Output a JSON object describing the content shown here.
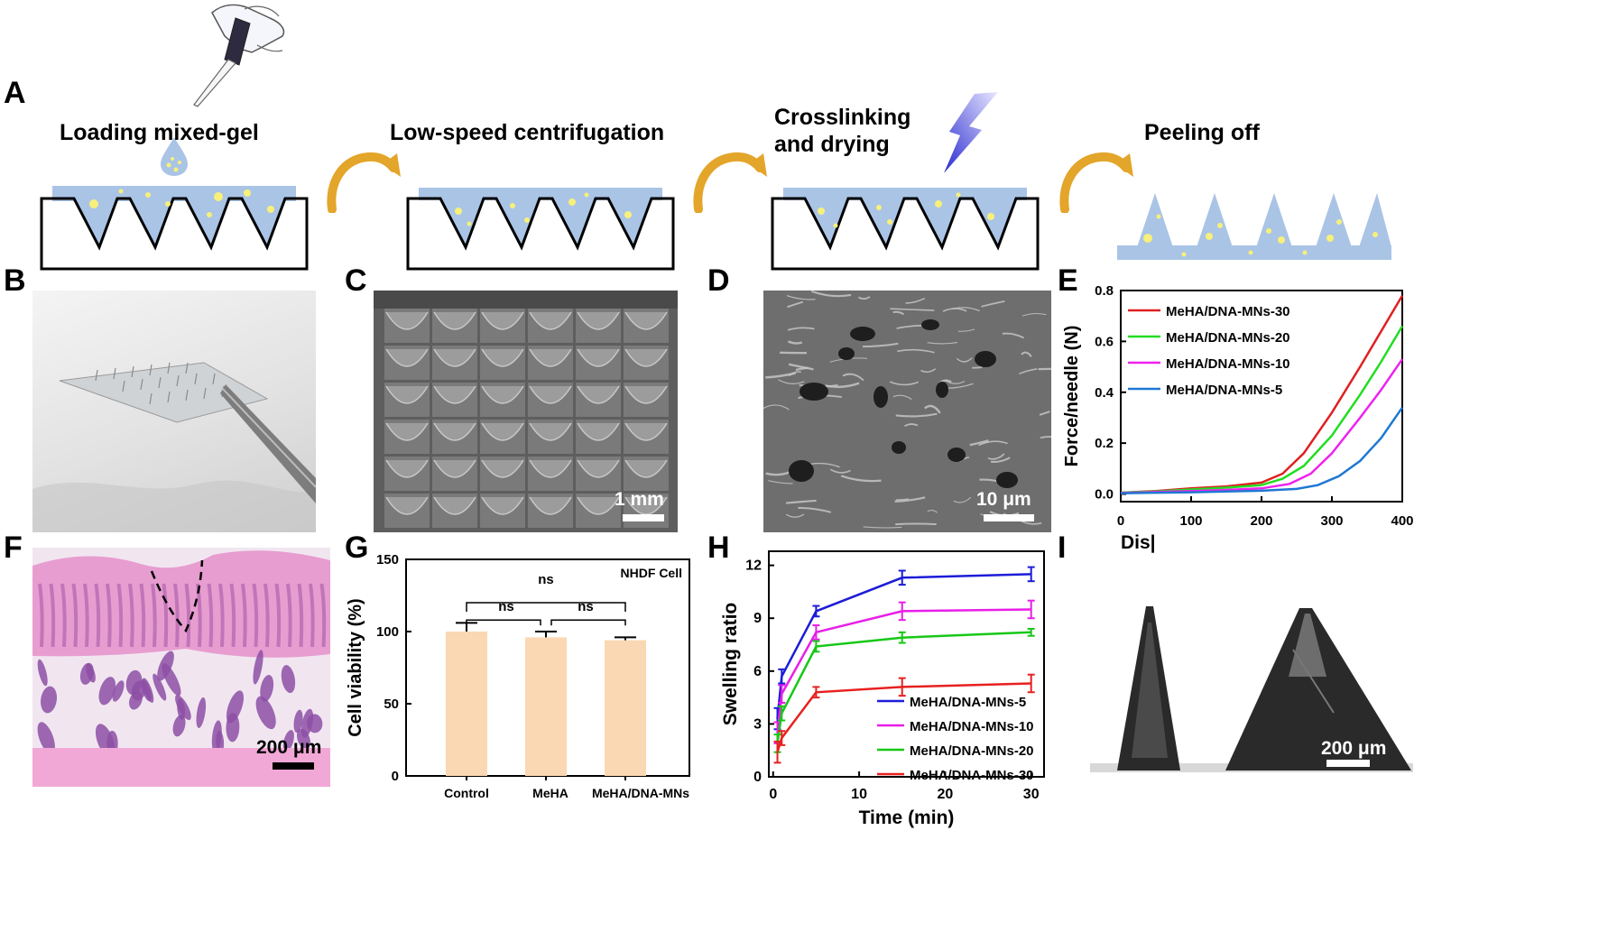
{
  "panel_labels": {
    "A": "A",
    "B": "B",
    "C": "C",
    "D": "D",
    "E": "E",
    "F": "F",
    "G": "G",
    "H": "H",
    "I": "I"
  },
  "steps": [
    "Loading mixed-gel",
    "Low-speed centrifugation",
    "Crosslinking",
    "and drying",
    "Peeling off"
  ],
  "scale_bars": {
    "C": "1 mm",
    "D": "10 μm",
    "F": "200 μm",
    "I": "200 μm"
  },
  "colors": {
    "gel": "#aac4e6",
    "bubble": "#f7f07a",
    "arrow": "#e3a52a",
    "bolt": "#3b3bd6",
    "bar": "#fad8b4"
  },
  "chart_data": [
    {
      "panel": "E",
      "type": "line",
      "xlabel": "Dis|",
      "ylabel": "Force/needle (N)",
      "xlim": [
        0,
        400
      ],
      "ylim": [
        -0.03,
        0.8
      ],
      "xticks": [
        "0",
        "100",
        "200",
        "300",
        "400"
      ],
      "yticks": [
        "0.0",
        "0.2",
        "0.4",
        "0.6",
        "0.8"
      ],
      "legend_position": "top-left",
      "series": [
        {
          "name": "MeHA/DNA-MNs-30",
          "color": "#e02020",
          "x": [
            0,
            50,
            100,
            150,
            200,
            230,
            260,
            300,
            340,
            370,
            400
          ],
          "y": [
            0.005,
            0.012,
            0.022,
            0.03,
            0.045,
            0.08,
            0.16,
            0.32,
            0.5,
            0.64,
            0.78
          ]
        },
        {
          "name": "MeHA/DNA-MNs-20",
          "color": "#22dd22",
          "x": [
            0,
            50,
            100,
            150,
            200,
            230,
            260,
            300,
            340,
            370,
            400
          ],
          "y": [
            0.005,
            0.01,
            0.018,
            0.025,
            0.035,
            0.06,
            0.11,
            0.23,
            0.39,
            0.52,
            0.66
          ]
        },
        {
          "name": "MeHA/DNA-MNs-10",
          "color": "#ee22ee",
          "x": [
            0,
            50,
            100,
            150,
            200,
            240,
            270,
            300,
            340,
            370,
            400
          ],
          "y": [
            0.004,
            0.008,
            0.012,
            0.016,
            0.022,
            0.04,
            0.08,
            0.16,
            0.3,
            0.41,
            0.53
          ]
        },
        {
          "name": "MeHA/DNA-MNs-5",
          "color": "#1e78d2",
          "x": [
            0,
            50,
            100,
            150,
            200,
            250,
            280,
            310,
            340,
            370,
            400
          ],
          "y": [
            0.003,
            0.005,
            0.007,
            0.01,
            0.013,
            0.02,
            0.035,
            0.07,
            0.13,
            0.22,
            0.34
          ]
        }
      ]
    },
    {
      "panel": "G",
      "type": "bar",
      "ylabel": "Cell viability (%)",
      "ylim": [
        0,
        150
      ],
      "yticks": [
        "0",
        "50",
        "100",
        "150"
      ],
      "categories": [
        "Control",
        "MeHA",
        "MeHA/DNA-MNs"
      ],
      "values": [
        100,
        96,
        94
      ],
      "errors": [
        6,
        4,
        2
      ],
      "annotations": [
        "ns",
        "ns",
        "ns",
        "NHDF Cell"
      ]
    },
    {
      "panel": "H",
      "type": "line",
      "xlabel": "Time (min)",
      "ylabel": "Swelling ratio",
      "xlim": [
        -0.5,
        31.5
      ],
      "ylim": [
        0,
        12.8
      ],
      "xticks": [
        "0",
        "10",
        "20",
        "30"
      ],
      "yticks": [
        "0",
        "3",
        "6",
        "9",
        "12"
      ],
      "legend_position": "bottom-right",
      "x": [
        0.5,
        1,
        5,
        15,
        30
      ],
      "series": [
        {
          "name": "MeHA/DNA-MNs-5",
          "color": "#1c1cd8",
          "values": [
            3.3,
            5.7,
            9.4,
            11.3,
            11.5
          ],
          "errors": [
            0.6,
            0.4,
            0.3,
            0.4,
            0.4
          ]
        },
        {
          "name": "MeHA/DNA-MNs-10",
          "color": "#e81ee8",
          "values": [
            2.5,
            4.7,
            8.2,
            9.4,
            9.5
          ],
          "errors": [
            0.6,
            0.5,
            0.4,
            0.5,
            0.5
          ]
        },
        {
          "name": "MeHA/DNA-MNs-20",
          "color": "#16c816",
          "values": [
            1.9,
            3.6,
            7.4,
            7.9,
            8.2
          ],
          "errors": [
            0.5,
            0.4,
            0.3,
            0.3,
            0.2
          ]
        },
        {
          "name": "MeHA/DNA-MNs-30",
          "color": "#e82020",
          "values": [
            1.4,
            2.2,
            4.8,
            5.1,
            5.3
          ],
          "errors": [
            0.6,
            0.4,
            0.3,
            0.5,
            0.5
          ]
        }
      ]
    }
  ]
}
